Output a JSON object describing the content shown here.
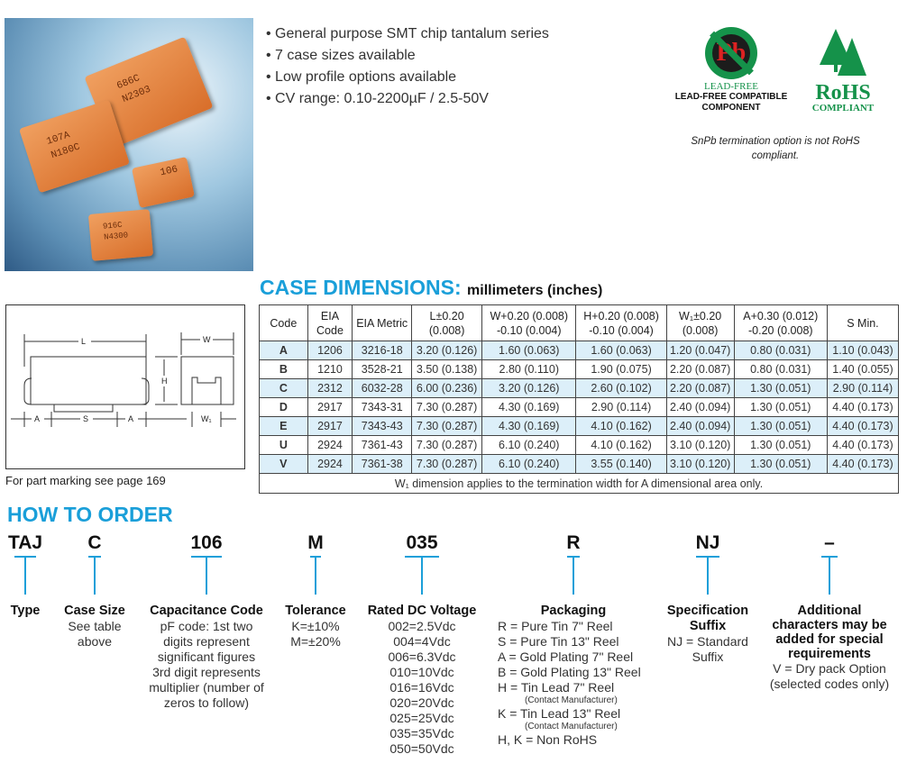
{
  "photo": {
    "chips": [
      "686C",
      "N2303",
      "107A",
      "N180C",
      "106",
      "916C",
      "N4300"
    ]
  },
  "features": [
    "General purpose SMT chip tantalum series",
    "7 case sizes available",
    "Low profile options available",
    "CV range: 0.10-2200µF / 2.5-50V"
  ],
  "logos": {
    "leadfree_symbol": "Pb",
    "leadfree_text": "LEAD-FREE",
    "leadfree_caption": "LEAD-FREE COMPATIBLE COMPONENT",
    "rohs_text": "RoHS",
    "rohs_sub": "COMPLIANT",
    "note": "SnPb termination option is not RoHS compliant.",
    "green": "#15924a"
  },
  "case_dimensions": {
    "title": "CASE DIMENSIONS:",
    "unit": "millimeters (inches)",
    "headers": [
      "Code",
      "EIA Code",
      "EIA Metric",
      "L±0.20 (0.008)",
      "W+0.20 (0.008) -0.10 (0.004)",
      "H+0.20 (0.008) -0.10 (0.004)",
      "W₁±0.20 (0.008)",
      "A+0.30 (0.012) -0.20 (0.008)",
      "S Min."
    ],
    "rows": [
      [
        "A",
        "1206",
        "3216-18",
        "3.20 (0.126)",
        "1.60 (0.063)",
        "1.60 (0.063)",
        "1.20 (0.047)",
        "0.80 (0.031)",
        "1.10 (0.043)"
      ],
      [
        "B",
        "1210",
        "3528-21",
        "3.50 (0.138)",
        "2.80 (0.110)",
        "1.90 (0.075)",
        "2.20 (0.087)",
        "0.80 (0.031)",
        "1.40 (0.055)"
      ],
      [
        "C",
        "2312",
        "6032-28",
        "6.00 (0.236)",
        "3.20 (0.126)",
        "2.60 (0.102)",
        "2.20 (0.087)",
        "1.30 (0.051)",
        "2.90 (0.114)"
      ],
      [
        "D",
        "2917",
        "7343-31",
        "7.30 (0.287)",
        "4.30 (0.169)",
        "2.90 (0.114)",
        "2.40 (0.094)",
        "1.30 (0.051)",
        "4.40 (0.173)"
      ],
      [
        "E",
        "2917",
        "7343-43",
        "7.30 (0.287)",
        "4.30 (0.169)",
        "4.10 (0.162)",
        "2.40 (0.094)",
        "1.30 (0.051)",
        "4.40 (0.173)"
      ],
      [
        "U",
        "2924",
        "7361-43",
        "7.30 (0.287)",
        "6.10 (0.240)",
        "4.10 (0.162)",
        "3.10 (0.120)",
        "1.30 (0.051)",
        "4.40 (0.173)"
      ],
      [
        "V",
        "2924",
        "7361-38",
        "7.30 (0.287)",
        "6.10 (0.240)",
        "3.55 (0.140)",
        "3.10 (0.120)",
        "1.30 (0.051)",
        "4.40 (0.173)"
      ]
    ],
    "footnote": "W₁ dimension applies to the termination width for A dimensional area only.",
    "diagram_labels": {
      "L": "L",
      "W": "W",
      "H": "H",
      "A": "A",
      "S": "S",
      "W1": "W₁"
    },
    "caption": "For part marking see page 169"
  },
  "how_to_order": {
    "title": "HOW TO ORDER",
    "codes": [
      "TAJ",
      "C",
      "106",
      "M",
      "035",
      "R",
      "NJ",
      "–"
    ],
    "columns": [
      {
        "heading": "Type",
        "lines": []
      },
      {
        "heading": "Case Size",
        "lines": [
          "See table",
          "above"
        ]
      },
      {
        "heading": "Capacitance Code",
        "lines": [
          "pF code: 1st two",
          "digits represent",
          "significant figures",
          "3rd digit represents",
          "multiplier (number of",
          "zeros to follow)"
        ]
      },
      {
        "heading": "Tolerance",
        "lines": [
          "K=±10%",
          "M=±20%"
        ]
      },
      {
        "heading": "Rated DC Voltage",
        "lines": [
          "002=2.5Vdc",
          "004=4Vdc",
          "006=6.3Vdc",
          "010=10Vdc",
          "016=16Vdc",
          "020=20Vdc",
          "025=25Vdc",
          "035=35Vdc",
          "050=50Vdc"
        ]
      },
      {
        "heading": "Packaging",
        "lines": [
          "R = Pure Tin 7\" Reel",
          "S = Pure Tin 13\" Reel",
          "A = Gold Plating 7\" Reel",
          "B = Gold Plating 13\" Reel",
          "H = Tin Lead 7\" Reel",
          "(Contact Manufacturer)",
          "K = Tin Lead 13\" Reel",
          "(Contact Manufacturer)",
          "H, K = Non RoHS"
        ]
      },
      {
        "heading": "Specification Suffix",
        "lines": [
          "NJ = Standard",
          "Suffix"
        ]
      },
      {
        "heading": "Additional characters may be added for special requirements",
        "lines": [
          "V = Dry pack Option",
          "(selected codes only)"
        ]
      }
    ]
  },
  "colors": {
    "accent": "#1a9fd9",
    "row_highlight": "#dceff9"
  }
}
